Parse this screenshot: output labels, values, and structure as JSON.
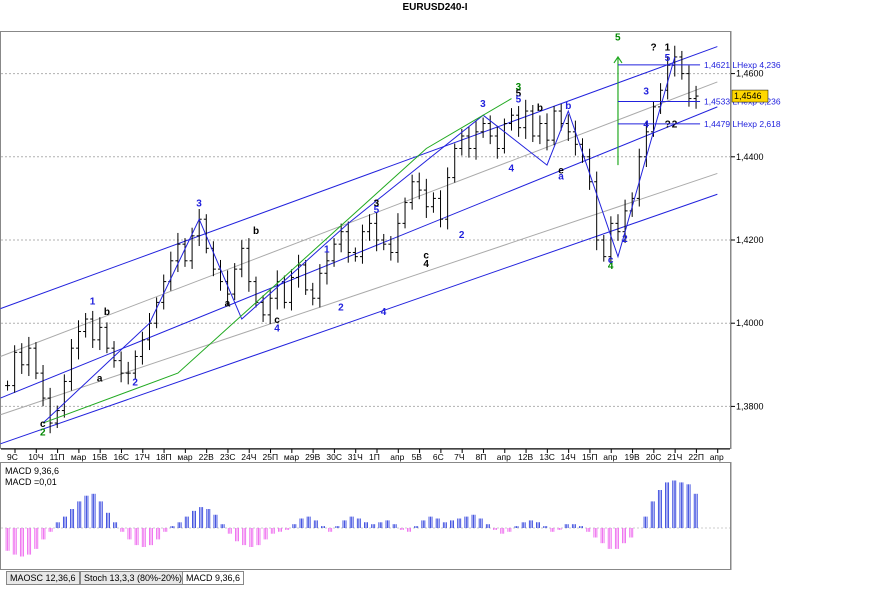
{
  "title": "EURUSD240-I",
  "chart_data": {
    "type": "candlestick",
    "symbol": "EURUSD240-I",
    "ylim": [
      1.37,
      1.47
    ],
    "y_ticks": [
      "1,4600",
      "1,4400",
      "1,4200",
      "1,4000",
      "1,3800"
    ],
    "y_tick_values": [
      1.46,
      1.44,
      1.42,
      1.4,
      1.38
    ],
    "current_price": "1,4546",
    "current_price_value": 1.4546,
    "x_tick_labels": [
      "9С",
      "10Ч",
      "11П",
      "мар",
      "15В",
      "16С",
      "17Ч",
      "18П",
      "мар",
      "22В",
      "23С",
      "24Ч",
      "25П",
      "мар",
      "29В",
      "30С",
      "31Ч",
      "1П",
      "апр",
      "5В",
      "6С",
      "7Ч",
      "8П",
      "апр",
      "12В",
      "13С",
      "14Ч",
      "15П",
      "апр",
      "19В",
      "20С",
      "21Ч",
      "22П",
      "апр"
    ],
    "price_anchors": [
      1.385,
      1.393,
      1.39,
      1.394,
      1.388,
      1.382,
      1.376,
      1.379,
      1.386,
      1.394,
      1.398,
      1.401,
      1.396,
      1.399,
      1.394,
      1.391,
      1.388,
      1.388,
      1.392,
      1.396,
      1.4,
      1.405,
      1.41,
      1.415,
      1.419,
      1.415,
      1.421,
      1.425,
      1.418,
      1.413,
      1.41,
      1.407,
      1.413,
      1.418,
      1.41,
      1.405,
      1.402,
      1.406,
      1.41,
      1.405,
      1.411,
      1.414,
      1.408,
      1.406,
      1.412,
      1.415,
      1.419,
      1.422,
      1.417,
      1.416,
      1.422,
      1.424,
      1.42,
      1.419,
      1.417,
      1.424,
      1.429,
      1.434,
      1.432,
      1.428,
      1.43,
      1.425,
      1.435,
      1.442,
      1.445,
      1.442,
      1.446,
      1.448,
      1.445,
      1.442,
      1.448,
      1.45,
      1.447,
      1.451,
      1.445,
      1.448,
      1.444,
      1.451,
      1.448,
      1.446,
      1.443,
      1.44,
      1.434,
      1.42,
      1.416,
      1.424,
      1.422,
      1.427,
      1.43,
      1.44,
      1.446,
      1.452,
      1.456,
      1.462,
      1.464,
      1.46,
      1.454,
      1.4546
    ],
    "channel_lines": [
      {
        "color": "#2222dd",
        "from": [
          -1,
          1.4035
        ],
        "to": [
          100,
          1.4665
        ]
      },
      {
        "color": "#2222dd",
        "from": [
          -1,
          1.371
        ],
        "to": [
          100,
          1.431
        ]
      },
      {
        "color": "#2222dd",
        "from": [
          -1,
          1.382
        ],
        "to": [
          100,
          1.452
        ]
      },
      {
        "color": "#aaaaaa",
        "from": [
          -1,
          1.378
        ],
        "to": [
          100,
          1.436
        ]
      },
      {
        "color": "#aaaaaa",
        "from": [
          -1,
          1.392
        ],
        "to": [
          100,
          1.458
        ]
      }
    ],
    "wave_lines_blue": [
      [
        5,
        1.376
      ],
      [
        20,
        1.4
      ],
      [
        27,
        1.425
      ],
      [
        33,
        1.401
      ],
      [
        48,
        1.424
      ],
      [
        67,
        1.45
      ],
      [
        76,
        1.438
      ],
      [
        79,
        1.451
      ],
      [
        86,
        1.416
      ],
      [
        94,
        1.464
      ]
    ],
    "wave_lines_green": [
      [
        5,
        1.376
      ],
      [
        24,
        1.388
      ],
      [
        59,
        1.442
      ],
      [
        71,
        1.454
      ]
    ],
    "wave_labels": [
      {
        "text": "2",
        "i": 5,
        "p": 1.373,
        "color": "#008800"
      },
      {
        "text": "c",
        "i": 5,
        "p": 1.375,
        "color": "#000000"
      },
      {
        "text": "1",
        "i": 12,
        "p": 1.4045,
        "color": "#2222dd"
      },
      {
        "text": "b",
        "i": 14,
        "p": 1.402,
        "color": "#000000"
      },
      {
        "text": "a",
        "i": 13,
        "p": 1.386,
        "color": "#000000"
      },
      {
        "text": "2",
        "i": 18,
        "p": 1.385,
        "color": "#2222dd"
      },
      {
        "text": "3",
        "i": 27,
        "p": 1.428,
        "color": "#2222dd"
      },
      {
        "text": "a",
        "i": 31,
        "p": 1.404,
        "color": "#000000"
      },
      {
        "text": "b",
        "i": 35,
        "p": 1.4215,
        "color": "#000000"
      },
      {
        "text": "4",
        "i": 38,
        "p": 1.398,
        "color": "#2222dd"
      },
      {
        "text": "c",
        "i": 38,
        "p": 1.4,
        "color": "#000000"
      },
      {
        "text": "1",
        "i": 45,
        "p": 1.417,
        "color": "#2222dd"
      },
      {
        "text": "2",
        "i": 47,
        "p": 1.403,
        "color": "#2222dd"
      },
      {
        "text": "3",
        "i": 52,
        "p": 1.428,
        "color": "#000000"
      },
      {
        "text": "5",
        "i": 52,
        "p": 1.4265,
        "color": "#2222dd"
      },
      {
        "text": "4",
        "i": 53,
        "p": 1.402,
        "color": "#2222dd"
      },
      {
        "text": "c",
        "i": 59,
        "p": 1.4155,
        "color": "#000000"
      },
      {
        "text": "4",
        "i": 59,
        "p": 1.4135,
        "color": "#000000"
      },
      {
        "text": "2",
        "i": 64,
        "p": 1.4205,
        "color": "#2222dd"
      },
      {
        "text": "3",
        "i": 67,
        "p": 1.452,
        "color": "#2222dd"
      },
      {
        "text": "3",
        "i": 72,
        "p": 1.456,
        "color": "#008800"
      },
      {
        "text": "5",
        "i": 72,
        "p": 1.4545,
        "color": "#000000"
      },
      {
        "text": "5",
        "i": 72,
        "p": 1.453,
        "color": "#2222dd"
      },
      {
        "text": "b",
        "i": 75,
        "p": 1.451,
        "color": "#000000"
      },
      {
        "text": "4",
        "i": 71,
        "p": 1.4365,
        "color": "#2222dd"
      },
      {
        "text": "b",
        "i": 79,
        "p": 1.4515,
        "color": "#2222dd"
      },
      {
        "text": "a",
        "i": 78,
        "p": 1.4345,
        "color": "#2222dd"
      },
      {
        "text": "e",
        "i": 78,
        "p": 1.436,
        "color": "#000000"
      },
      {
        "text": "4",
        "i": 85,
        "p": 1.413,
        "color": "#008800"
      },
      {
        "text": "c",
        "i": 85,
        "p": 1.4145,
        "color": "#2222dd"
      },
      {
        "text": "2",
        "i": 87,
        "p": 1.4195,
        "color": "#2222dd"
      },
      {
        "text": "4",
        "i": 90,
        "p": 1.447,
        "color": "#2222dd"
      },
      {
        "text": "3",
        "i": 90,
        "p": 1.455,
        "color": "#2222dd"
      },
      {
        "text": "5",
        "i": 93,
        "p": 1.463,
        "color": "#2222dd"
      },
      {
        "text": "1",
        "i": 93,
        "p": 1.4655,
        "color": "#000000"
      },
      {
        "text": "?",
        "i": 91,
        "p": 1.4655,
        "color": "#000000"
      },
      {
        "text": "2",
        "i": 94,
        "p": 1.447,
        "color": "#000000"
      },
      {
        "text": "?",
        "i": 93,
        "p": 1.447,
        "color": "#000000"
      },
      {
        "text": "5",
        "i": 86,
        "p": 1.468,
        "color": "#008800"
      }
    ],
    "green_arrow": {
      "x": 86,
      "from": 1.438,
      "to": 1.464
    },
    "expansions": [
      {
        "label": "1,4621 LHexp 4,236",
        "value": 1.4621
      },
      {
        "label": "1,4533 LHexp 3,236",
        "value": 1.4533
      },
      {
        "label": "1,4479 LHexp 2,618",
        "value": 1.4479
      }
    ],
    "macd": {
      "label_params": "MACD 9,36,6",
      "label_value": "MACD =0,01",
      "values": [
        -0.6,
        -0.7,
        -0.75,
        -0.7,
        -0.55,
        -0.3,
        -0.1,
        0.15,
        0.3,
        0.5,
        0.7,
        0.85,
        0.9,
        0.7,
        0.4,
        0.15,
        -0.1,
        -0.3,
        -0.45,
        -0.5,
        -0.45,
        -0.3,
        -0.1,
        0.05,
        0.15,
        0.3,
        0.45,
        0.55,
        0.5,
        0.35,
        0.1,
        -0.15,
        -0.35,
        -0.45,
        -0.5,
        -0.45,
        -0.3,
        -0.15,
        -0.1,
        -0.05,
        0.1,
        0.25,
        0.3,
        0.2,
        0.05,
        -0.1,
        0.05,
        0.2,
        0.3,
        0.25,
        0.15,
        0.1,
        0.15,
        0.2,
        0.1,
        -0.05,
        -0.1,
        0.05,
        0.2,
        0.3,
        0.25,
        0.15,
        0.2,
        0.25,
        0.3,
        0.35,
        0.25,
        0.1,
        -0.05,
        -0.15,
        -0.1,
        0.05,
        0.15,
        0.2,
        0.15,
        0.05,
        -0.1,
        -0.05,
        0.1,
        0.1,
        0.05,
        -0.1,
        -0.25,
        -0.4,
        -0.55,
        -0.55,
        -0.4,
        -0.25,
        0.0,
        0.3,
        0.7,
        1.0,
        1.2,
        1.25,
        1.2,
        1.15,
        0.9
      ]
    }
  },
  "tabs": [
    "MAOSC 12,36,6",
    "Stoch 13,3,3 (80%-20%)",
    "MACD 9,36,6"
  ],
  "active_tab": "MACD 9,36,6"
}
